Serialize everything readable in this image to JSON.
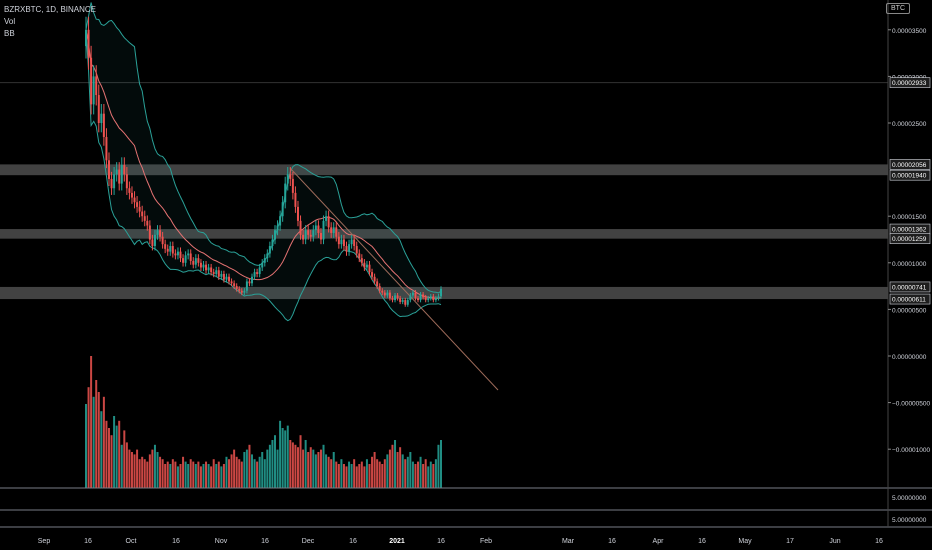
{
  "header": {
    "symbol_line": "BZRXBTC, 1D, BINANCE",
    "indicator_vol": "Vol",
    "indicator_bb": "BB",
    "currency_button": "BTC"
  },
  "colors": {
    "background": "#000000",
    "up": "#26a69a",
    "down": "#ef5350",
    "zone": "#787878",
    "bb_line": "#2aa198",
    "ma_line": "#e57373",
    "trend_line": "#9e6b5a",
    "axis_text": "#d1d4dc"
  },
  "chart_data": {
    "type": "candlestick",
    "price_axis_ticks": [
      "0.00003500",
      "0.00003000",
      "0.00002500",
      "0.00001500",
      "0.00001000",
      "0.00000500",
      "0.00000000",
      "−0.00000500",
      "−0.00001000"
    ],
    "price_labels": [
      "0.00002933",
      "0.00002056",
      "0.00001940",
      "0.00001362",
      "0.00001259",
      "0.00000741",
      "0.00000611"
    ],
    "zones": [
      {
        "low": 1.94e-05,
        "high": 2.056e-05
      },
      {
        "low": 1.259e-05,
        "high": 1.362e-05
      },
      {
        "low": 6.11e-06,
        "high": 7.41e-06
      }
    ],
    "volume_pane_labels": [
      "5.00000000",
      "5.00000000"
    ],
    "time_axis": [
      "Sep",
      "16",
      "Oct",
      "16",
      "Nov",
      "16",
      "Dec",
      "16",
      "2021",
      "16",
      "Feb",
      "Mar",
      "16",
      "Apr",
      "16",
      "May",
      "17",
      "Jun",
      "16"
    ],
    "series": [
      {
        "name": "BZRXBTC",
        "close": [
          3.5e-05,
          3.2e-05,
          2.7e-05,
          3e-05,
          2.8e-05,
          2.5e-05,
          2.6e-05,
          2.35e-05,
          2.1e-05,
          1.9e-05,
          1.8e-05,
          1.95e-05,
          2e-05,
          1.85e-05,
          2.05e-05,
          1.95e-05,
          1.8e-05,
          1.75e-05,
          1.7e-05,
          1.65e-05,
          1.6e-05,
          1.55e-05,
          1.5e-05,
          1.45e-05,
          1.4e-05,
          1.25e-05,
          1.18e-05,
          1.3e-05,
          1.35e-05,
          1.28e-05,
          1.2e-05,
          1.15e-05,
          1.12e-05,
          1.18e-05,
          1.1e-05,
          1.08e-05,
          1.12e-05,
          1.05e-05,
          1e-05,
          1.08e-05,
          1.1e-05,
          1.02e-05,
          9.8e-06,
          1.05e-05,
          1e-05,
          9.5e-06,
          9.8e-06,
          9.2e-06,
          9.5e-06,
          9e-06,
          8.8e-06,
          9.2e-06,
          8.5e-06,
          8.8e-06,
          8.2e-06,
          8.5e-06,
          8e-06,
          7.8e-06,
          7.5e-06,
          7.2e-06,
          7e-06,
          6.8e-06,
          7e-06,
          8e-06,
          7.8e-06,
          8.5e-06,
          9e-06,
          8.8e-06,
          9.5e-06,
          1e-05,
          1.05e-05,
          1.1e-05,
          1.18e-05,
          1.25e-05,
          1.35e-05,
          1.4e-05,
          1.5e-05,
          1.65e-05,
          1.85e-05,
          1.95e-05,
          1.9e-05,
          1.75e-05,
          1.6e-05,
          1.45e-05,
          1.3e-05,
          1.25e-05,
          1.35e-05,
          1.3e-05,
          1.28e-05,
          1.35e-05,
          1.4e-05,
          1.32e-05,
          1.25e-05,
          1.45e-05,
          1.5e-05,
          1.38e-05,
          1.32e-05,
          1.38e-05,
          1.28e-05,
          1.2e-05,
          1.25e-05,
          1.18e-05,
          1.12e-05,
          1.2e-05,
          1.25e-05,
          1.18e-05,
          1.1e-05,
          1.05e-05,
          1e-05,
          9.5e-06,
          9.8e-06,
          9e-06,
          8.5e-06,
          8e-06,
          7.5e-06,
          7e-06,
          6.8e-06,
          6.5e-06,
          6.8e-06,
          6.2e-06,
          6e-06,
          6.5e-06,
          6.2e-06,
          5.8e-06,
          6e-06,
          5.5e-06,
          6e-06,
          6.5e-06,
          6.8e-06,
          6.2e-06,
          6e-06,
          6.6e-06,
          6.3e-06,
          6e-06,
          6.2e-06,
          6.4e-06,
          6e-06,
          6.2e-06,
          6.4e-06,
          7.2e-06
        ],
        "volume": [
          3.5,
          4.2,
          5.5,
          3.8,
          4.5,
          4.0,
          3.2,
          3.8,
          2.8,
          2.5,
          2.2,
          3.0,
          2.6,
          2.8,
          1.8,
          2.4,
          1.9,
          1.6,
          1.5,
          1.4,
          1.6,
          1.2,
          1.3,
          1.2,
          1.1,
          1.4,
          1.6,
          1.8,
          1.5,
          1.3,
          1.2,
          1.0,
          1.1,
          1.0,
          1.2,
          1.1,
          0.9,
          1.0,
          1.3,
          1.1,
          1.0,
          1.2,
          1.1,
          1.0,
          1.1,
          0.9,
          1.0,
          1.1,
          1.0,
          0.9,
          1.2,
          1.0,
          1.1,
          0.9,
          1.0,
          1.3,
          1.2,
          1.4,
          1.6,
          1.3,
          1.2,
          1.1,
          1.5,
          1.6,
          1.8,
          1.4,
          1.2,
          1.1,
          1.3,
          1.5,
          1.2,
          1.6,
          1.8,
          2.0,
          2.2,
          1.6,
          2.8,
          2.5,
          2.4,
          2.6,
          2.0,
          1.9,
          1.8,
          1.7,
          2.2,
          1.6,
          2.0,
          1.5,
          1.7,
          1.6,
          1.4,
          1.5,
          1.6,
          1.8,
          1.4,
          1.3,
          1.2,
          1.5,
          1.1,
          1.0,
          1.2,
          1.0,
          0.9,
          1.1,
          1.0,
          1.2,
          0.9,
          1.0,
          1.1,
          0.9,
          1.2,
          1.0,
          1.3,
          1.5,
          1.2,
          1.1,
          1.0,
          1.2,
          1.4,
          1.6,
          1.8,
          2.0,
          1.5,
          1.7,
          1.4,
          1.2,
          1.3,
          1.5,
          1.1,
          1.0,
          1.1,
          1.3,
          1.0,
          1.2,
          0.9,
          1.1,
          1.0,
          1.2,
          1.8,
          2.0
        ]
      }
    ]
  }
}
